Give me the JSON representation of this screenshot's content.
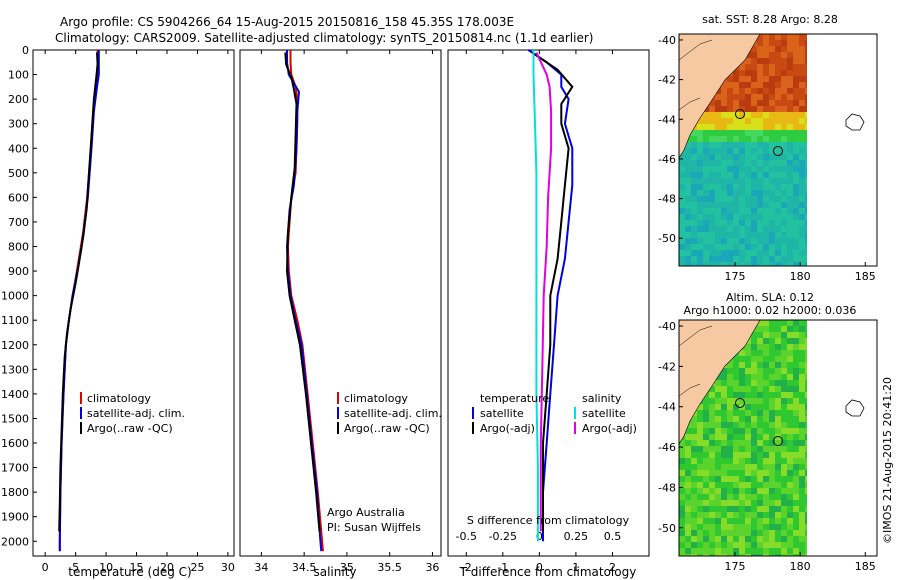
{
  "header": {
    "title_line1": "Argo profile: CS 5904266_64 15-Aug-2015 20150816_158 45.35S 178.003E",
    "title_line2": "Climatology: CARS2009. Satellite-adjusted climatology: synTS_20150814.nc (1.1d earlier)"
  },
  "colors": {
    "climatology": "#e00000",
    "satellite": "#0000e0",
    "argo": "#000000",
    "sal_satellite": "#00e0e0",
    "sal_argo": "#e000e0"
  },
  "chart_data": [
    {
      "type": "line",
      "panel": "temperature",
      "xlabel": "temperature (deg C)",
      "xlim": [
        -2,
        31
      ],
      "ylim": [
        0,
        2060
      ],
      "y_inverted": true,
      "xticks": [
        0,
        5,
        10,
        15,
        20,
        25,
        30
      ],
      "yticks": [
        0,
        100,
        200,
        300,
        400,
        500,
        600,
        700,
        800,
        900,
        1000,
        1100,
        1200,
        1300,
        1400,
        1500,
        1600,
        1700,
        1800,
        1900,
        2000
      ],
      "legend": [
        "climatology",
        "satellite-adj. clim.",
        "Argo(..raw -QC)"
      ],
      "series": [
        {
          "name": "climatology",
          "color": "climatology",
          "points": [
            [
              8.6,
              0
            ],
            [
              8.6,
              50
            ],
            [
              8.5,
              100
            ],
            [
              8.3,
              150
            ],
            [
              7.9,
              250
            ],
            [
              7.5,
              400
            ],
            [
              6.9,
              600
            ],
            [
              6.2,
              750
            ],
            [
              5.2,
              900
            ],
            [
              4.5,
              1000
            ],
            [
              3.9,
              1100
            ],
            [
              3.4,
              1200
            ],
            [
              3.0,
              1400
            ],
            [
              2.7,
              1600
            ],
            [
              2.5,
              1800
            ],
            [
              2.4,
              2000
            ],
            [
              2.4,
              2040
            ]
          ]
        },
        {
          "name": "satellite-adj. clim.",
          "color": "satellite",
          "points": [
            [
              8.8,
              0
            ],
            [
              8.8,
              50
            ],
            [
              8.8,
              100
            ],
            [
              8.5,
              150
            ],
            [
              8.0,
              250
            ],
            [
              7.6,
              400
            ],
            [
              7.0,
              600
            ],
            [
              6.3,
              750
            ],
            [
              5.3,
              900
            ],
            [
              4.5,
              1000
            ],
            [
              3.9,
              1100
            ],
            [
              3.4,
              1200
            ],
            [
              3.0,
              1400
            ],
            [
              2.7,
              1600
            ],
            [
              2.5,
              1800
            ],
            [
              2.4,
              2000
            ],
            [
              2.4,
              2040
            ]
          ]
        },
        {
          "name": "Argo(..raw -QC)",
          "color": "argo",
          "points": [
            [
              8.5,
              10
            ],
            [
              8.6,
              60
            ],
            [
              8.4,
              110
            ],
            [
              8.0,
              200
            ],
            [
              7.6,
              350
            ],
            [
              7.2,
              500
            ],
            [
              6.8,
              650
            ],
            [
              6.0,
              800
            ],
            [
              5.0,
              950
            ],
            [
              4.2,
              1050
            ],
            [
              3.6,
              1150
            ],
            [
              3.2,
              1250
            ],
            [
              2.9,
              1400
            ],
            [
              2.7,
              1550
            ],
            [
              2.5,
              1700
            ],
            [
              2.4,
              1850
            ],
            [
              2.3,
              1960
            ]
          ]
        }
      ]
    },
    {
      "type": "line",
      "panel": "salinity",
      "xlabel": "salinity",
      "xlim": [
        33.75,
        36.1
      ],
      "ylim": [
        0,
        2060
      ],
      "y_inverted": true,
      "xticks": [
        34,
        34.5,
        35,
        35.5,
        36
      ],
      "legend": [
        "climatology",
        "satellite-adj. clim.",
        "Argo(..raw -QC)"
      ],
      "annotation": [
        "Argo Australia",
        "PI: Susan Wijffels"
      ],
      "series": [
        {
          "name": "climatology",
          "color": "climatology",
          "points": [
            [
              34.34,
              0
            ],
            [
              34.34,
              50
            ],
            [
              34.35,
              100
            ],
            [
              34.4,
              150
            ],
            [
              34.42,
              200
            ],
            [
              34.42,
              300
            ],
            [
              34.4,
              500
            ],
            [
              34.35,
              600
            ],
            [
              34.31,
              800
            ],
            [
              34.32,
              900
            ],
            [
              34.35,
              1000
            ],
            [
              34.42,
              1100
            ],
            [
              34.48,
              1200
            ],
            [
              34.54,
              1400
            ],
            [
              34.6,
              1600
            ],
            [
              34.66,
              1800
            ],
            [
              34.71,
              2000
            ],
            [
              34.72,
              2040
            ]
          ]
        },
        {
          "name": "satellite-adj. clim.",
          "color": "satellite",
          "points": [
            [
              34.3,
              0
            ],
            [
              34.3,
              50
            ],
            [
              34.32,
              100
            ],
            [
              34.44,
              170
            ],
            [
              34.42,
              250
            ],
            [
              34.41,
              400
            ],
            [
              34.38,
              550
            ],
            [
              34.33,
              650
            ],
            [
              34.3,
              800
            ],
            [
              34.31,
              900
            ],
            [
              34.34,
              1000
            ],
            [
              34.4,
              1100
            ],
            [
              34.47,
              1200
            ],
            [
              34.53,
              1400
            ],
            [
              34.59,
              1600
            ],
            [
              34.65,
              1800
            ],
            [
              34.69,
              2000
            ],
            [
              34.7,
              2040
            ]
          ]
        },
        {
          "name": "Argo(..raw -QC)",
          "color": "argo",
          "points": [
            [
              34.28,
              10
            ],
            [
              34.29,
              60
            ],
            [
              34.35,
              110
            ],
            [
              34.38,
              160
            ],
            [
              34.41,
              220
            ],
            [
              34.4,
              350
            ],
            [
              34.39,
              480
            ],
            [
              34.35,
              600
            ],
            [
              34.31,
              750
            ],
            [
              34.3,
              900
            ],
            [
              34.33,
              1000
            ],
            [
              34.39,
              1100
            ],
            [
              34.45,
              1200
            ],
            [
              34.52,
              1400
            ],
            [
              34.58,
              1600
            ],
            [
              34.64,
              1800
            ],
            [
              34.68,
              1960
            ]
          ]
        }
      ]
    },
    {
      "type": "line",
      "panel": "difference",
      "xlabel": "T difference from climatology",
      "x2label": "S difference from climatology",
      "xlim": [
        -2.5,
        3
      ],
      "x2ticks": [
        "-0.5",
        "-0.25",
        "0",
        "0.25",
        "0.5"
      ],
      "x2tick_T_positions": [
        -2,
        -1,
        0,
        1,
        2
      ],
      "ylim": [
        0,
        2060
      ],
      "y_inverted": true,
      "xticks": [
        -2,
        -1,
        0,
        1,
        2
      ],
      "legend": {
        "temperature_title": "temperature",
        "salinity_title": "salinity",
        "items": [
          "satellite",
          "Argo(-adj)",
          "satellite",
          "Argo(-adj)"
        ]
      },
      "series": [
        {
          "name": "satellite",
          "quantity": "temperature",
          "color": "satellite",
          "points": [
            [
              -0.3,
              0
            ],
            [
              0.2,
              50
            ],
            [
              0.6,
              100
            ],
            [
              0.6,
              150
            ],
            [
              0.8,
              200
            ],
            [
              0.7,
              300
            ],
            [
              0.9,
              400
            ],
            [
              0.9,
              550
            ],
            [
              0.8,
              700
            ],
            [
              0.7,
              850
            ],
            [
              0.5,
              1000
            ],
            [
              0.4,
              1200
            ],
            [
              0.3,
              1400
            ],
            [
              0.2,
              1600
            ],
            [
              0.1,
              1800
            ],
            [
              0.1,
              2000
            ]
          ]
        },
        {
          "name": "Argo(-adj)",
          "quantity": "temperature",
          "color": "argo",
          "points": [
            [
              -0.2,
              10
            ],
            [
              0.5,
              80
            ],
            [
              0.9,
              150
            ],
            [
              0.6,
              220
            ],
            [
              0.6,
              300
            ],
            [
              0.8,
              400
            ],
            [
              0.7,
              550
            ],
            [
              0.6,
              700
            ],
            [
              0.5,
              850
            ],
            [
              0.3,
              1000
            ],
            [
              0.3,
              1200
            ],
            [
              0.2,
              1400
            ],
            [
              0.1,
              1600
            ],
            [
              0.1,
              1800
            ],
            [
              0.1,
              1960
            ]
          ]
        },
        {
          "name": "satellite",
          "quantity": "salinity",
          "color": "sal_satellite",
          "points": [
            [
              -0.04,
              0
            ],
            [
              -0.04,
              100
            ],
            [
              -0.03,
              300
            ],
            [
              -0.02,
              500
            ],
            [
              -0.02,
              800
            ],
            [
              -0.02,
              1100
            ],
            [
              -0.02,
              1400
            ],
            [
              -0.01,
              1700
            ],
            [
              -0.01,
              2000
            ]
          ]
        },
        {
          "name": "Argo(-adj)",
          "quantity": "salinity",
          "color": "sal_argo",
          "points": [
            [
              -0.02,
              10
            ],
            [
              0.05,
              100
            ],
            [
              0.07,
              150
            ],
            [
              0.08,
              250
            ],
            [
              0.08,
              400
            ],
            [
              0.06,
              600
            ],
            [
              0.05,
              800
            ],
            [
              0.03,
              1000
            ],
            [
              0.02,
              1300
            ],
            [
              0.01,
              1600
            ],
            [
              0.01,
              1960
            ]
          ]
        }
      ]
    },
    {
      "type": "heatmap",
      "panel": "sst_map",
      "title": "sat. SST: 8.28 Argo: 8.28",
      "xticks": [
        175,
        180,
        185
      ],
      "yticks": [
        -40,
        -42,
        -44,
        -46,
        -48,
        -50
      ]
    },
    {
      "type": "heatmap",
      "panel": "sla_map",
      "title_line1": "Altim. SLA: 0.12",
      "title_line2": "Argo h1000: 0.02 h2000: 0.036",
      "xticks": [
        175,
        180,
        185
      ],
      "yticks": [
        -40,
        -42,
        -44,
        -46,
        -48,
        -50
      ]
    }
  ],
  "footer": {
    "credit": "©IMOS 21-Aug-2015 20:41:20"
  }
}
